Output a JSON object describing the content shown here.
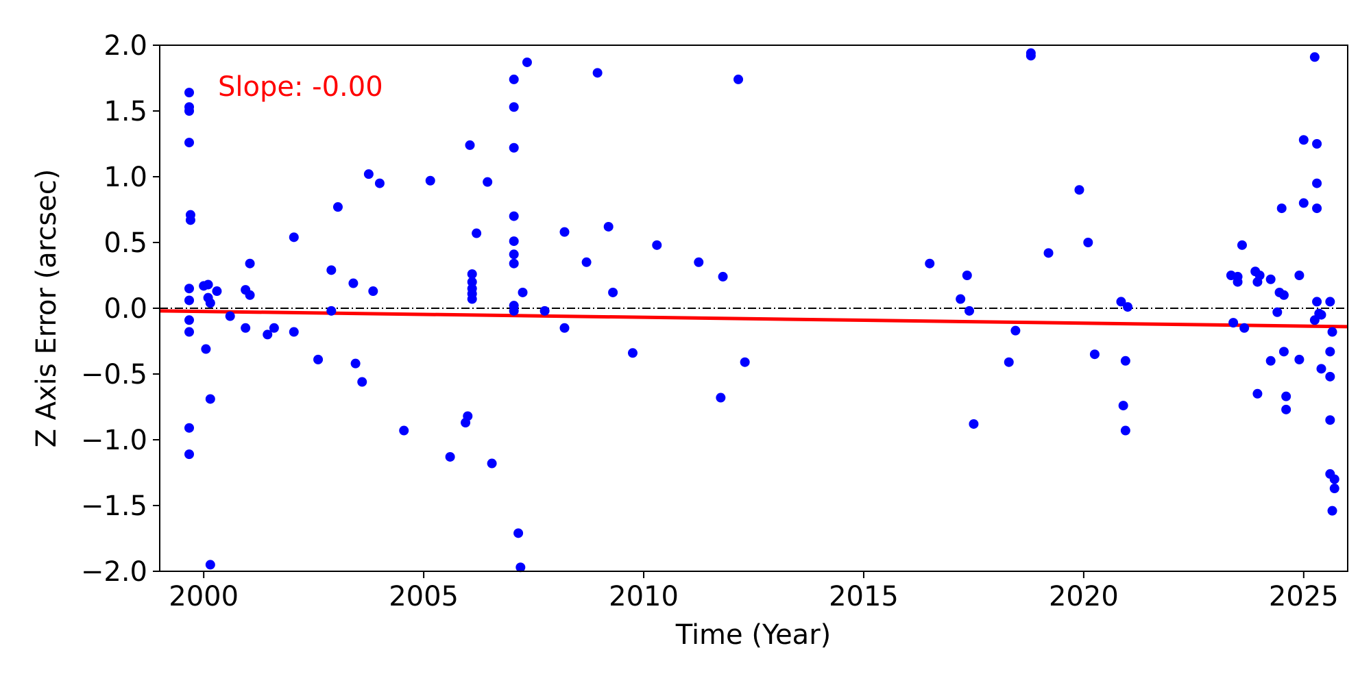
{
  "chart_data": {
    "type": "scatter",
    "title": "",
    "xlabel": "Time (Year)",
    "ylabel": "Z Axis Error (arcsec)",
    "xlim": [
      1999,
      2026
    ],
    "ylim": [
      -2.0,
      2.0
    ],
    "xticks": [
      2000,
      2005,
      2010,
      2015,
      2020,
      2025
    ],
    "xtick_labels": [
      "2000",
      "2005",
      "2010",
      "2015",
      "2020",
      "2025"
    ],
    "yticks": [
      2.0,
      1.5,
      1.0,
      0.5,
      0.0,
      -0.5,
      -1.0,
      -1.5,
      -2.0
    ],
    "ytick_labels": [
      "2.0",
      "1.5",
      "1.0",
      "0.5",
      "0.0",
      "−0.5",
      "−1.0",
      "−1.5",
      "−2.0"
    ],
    "grid": false,
    "point_color": "#0000ff",
    "fit_color": "#ff0000",
    "reference_line": {
      "y": 0.0,
      "style": "dash-dot",
      "color": "#000000"
    },
    "fit_line": {
      "x": [
        1999,
        2026
      ],
      "y": [
        -0.02,
        -0.14
      ]
    },
    "annotation": "Slope: -0.00",
    "points": [
      [
        1999.67,
        1.64
      ],
      [
        1999.67,
        1.53
      ],
      [
        1999.67,
        1.5
      ],
      [
        1999.67,
        1.26
      ],
      [
        1999.7,
        0.71
      ],
      [
        1999.7,
        0.67
      ],
      [
        1999.67,
        0.15
      ],
      [
        1999.67,
        0.06
      ],
      [
        1999.67,
        -0.09
      ],
      [
        1999.67,
        -0.18
      ],
      [
        1999.67,
        -0.91
      ],
      [
        1999.67,
        -1.11
      ],
      [
        2000.0,
        0.17
      ],
      [
        2000.1,
        0.18
      ],
      [
        2000.1,
        0.08
      ],
      [
        2000.15,
        0.04
      ],
      [
        2000.3,
        0.13
      ],
      [
        2000.05,
        -0.31
      ],
      [
        2000.15,
        -0.69
      ],
      [
        2000.15,
        -1.95
      ],
      [
        2000.6,
        -0.06
      ],
      [
        2000.95,
        0.14
      ],
      [
        2001.05,
        0.1
      ],
      [
        2001.05,
        0.34
      ],
      [
        2000.95,
        -0.15
      ],
      [
        2001.45,
        -0.2
      ],
      [
        2001.6,
        -0.15
      ],
      [
        2002.05,
        0.54
      ],
      [
        2002.05,
        -0.18
      ],
      [
        2002.6,
        -0.39
      ],
      [
        2002.9,
        0.29
      ],
      [
        2002.9,
        -0.02
      ],
      [
        2003.05,
        0.77
      ],
      [
        2003.4,
        0.19
      ],
      [
        2003.45,
        -0.42
      ],
      [
        2003.6,
        -0.56
      ],
      [
        2003.75,
        1.02
      ],
      [
        2003.85,
        0.13
      ],
      [
        2004.0,
        0.95
      ],
      [
        2004.55,
        -0.93
      ],
      [
        2005.15,
        0.97
      ],
      [
        2005.6,
        -1.13
      ],
      [
        2005.95,
        -0.87
      ],
      [
        2006.0,
        -0.82
      ],
      [
        2006.05,
        1.24
      ],
      [
        2006.1,
        0.26
      ],
      [
        2006.1,
        0.2
      ],
      [
        2006.1,
        0.15
      ],
      [
        2006.1,
        0.11
      ],
      [
        2006.1,
        0.07
      ],
      [
        2006.2,
        0.57
      ],
      [
        2006.45,
        0.96
      ],
      [
        2006.55,
        -1.18
      ],
      [
        2007.05,
        1.74
      ],
      [
        2007.05,
        1.53
      ],
      [
        2007.05,
        1.22
      ],
      [
        2007.05,
        0.7
      ],
      [
        2007.05,
        0.51
      ],
      [
        2007.05,
        0.41
      ],
      [
        2007.05,
        0.34
      ],
      [
        2007.05,
        0.02
      ],
      [
        2007.05,
        -0.02
      ],
      [
        2007.15,
        -1.71
      ],
      [
        2007.2,
        -1.97
      ],
      [
        2007.25,
        0.12
      ],
      [
        2007.35,
        1.87
      ],
      [
        2007.75,
        -0.02
      ],
      [
        2008.2,
        0.58
      ],
      [
        2008.2,
        -0.15
      ],
      [
        2008.7,
        0.35
      ],
      [
        2008.95,
        1.79
      ],
      [
        2009.2,
        0.62
      ],
      [
        2009.3,
        0.12
      ],
      [
        2009.75,
        -0.34
      ],
      [
        2010.3,
        0.48
      ],
      [
        2011.25,
        0.35
      ],
      [
        2011.75,
        -0.68
      ],
      [
        2011.8,
        0.24
      ],
      [
        2012.15,
        1.74
      ],
      [
        2012.3,
        -0.41
      ],
      [
        2016.5,
        0.34
      ],
      [
        2017.2,
        0.07
      ],
      [
        2017.35,
        0.25
      ],
      [
        2017.4,
        -0.02
      ],
      [
        2017.5,
        -0.88
      ],
      [
        2018.3,
        -0.41
      ],
      [
        2018.45,
        -0.17
      ],
      [
        2018.8,
        1.94
      ],
      [
        2018.8,
        1.92
      ],
      [
        2019.2,
        0.42
      ],
      [
        2019.9,
        0.9
      ],
      [
        2020.1,
        0.5
      ],
      [
        2020.25,
        -0.35
      ],
      [
        2020.85,
        0.05
      ],
      [
        2020.9,
        -0.74
      ],
      [
        2020.95,
        -0.4
      ],
      [
        2020.95,
        -0.93
      ],
      [
        2021.0,
        0.01
      ],
      [
        2023.35,
        0.25
      ],
      [
        2023.4,
        -0.11
      ],
      [
        2023.5,
        0.24
      ],
      [
        2023.5,
        0.2
      ],
      [
        2023.6,
        0.48
      ],
      [
        2023.65,
        -0.15
      ],
      [
        2023.9,
        0.28
      ],
      [
        2023.95,
        0.2
      ],
      [
        2023.95,
        -0.65
      ],
      [
        2024.0,
        0.25
      ],
      [
        2024.25,
        0.22
      ],
      [
        2024.25,
        -0.4
      ],
      [
        2024.4,
        -0.03
      ],
      [
        2024.45,
        0.12
      ],
      [
        2024.5,
        0.76
      ],
      [
        2024.55,
        -0.33
      ],
      [
        2024.55,
        0.1
      ],
      [
        2024.6,
        -0.67
      ],
      [
        2024.6,
        -0.77
      ],
      [
        2024.9,
        0.25
      ],
      [
        2024.9,
        -0.39
      ],
      [
        2025.0,
        1.28
      ],
      [
        2025.0,
        0.8
      ],
      [
        2025.25,
        1.91
      ],
      [
        2025.25,
        -0.09
      ],
      [
        2025.3,
        1.25
      ],
      [
        2025.3,
        0.95
      ],
      [
        2025.3,
        0.76
      ],
      [
        2025.3,
        0.05
      ],
      [
        2025.35,
        -0.04
      ],
      [
        2025.4,
        -0.05
      ],
      [
        2025.4,
        -0.46
      ],
      [
        2025.6,
        0.05
      ],
      [
        2025.6,
        -0.33
      ],
      [
        2025.6,
        -0.52
      ],
      [
        2025.6,
        -0.85
      ],
      [
        2025.65,
        -0.18
      ],
      [
        2025.6,
        -1.26
      ],
      [
        2025.7,
        -1.3
      ],
      [
        2025.7,
        -1.37
      ],
      [
        2025.65,
        -1.54
      ]
    ]
  }
}
